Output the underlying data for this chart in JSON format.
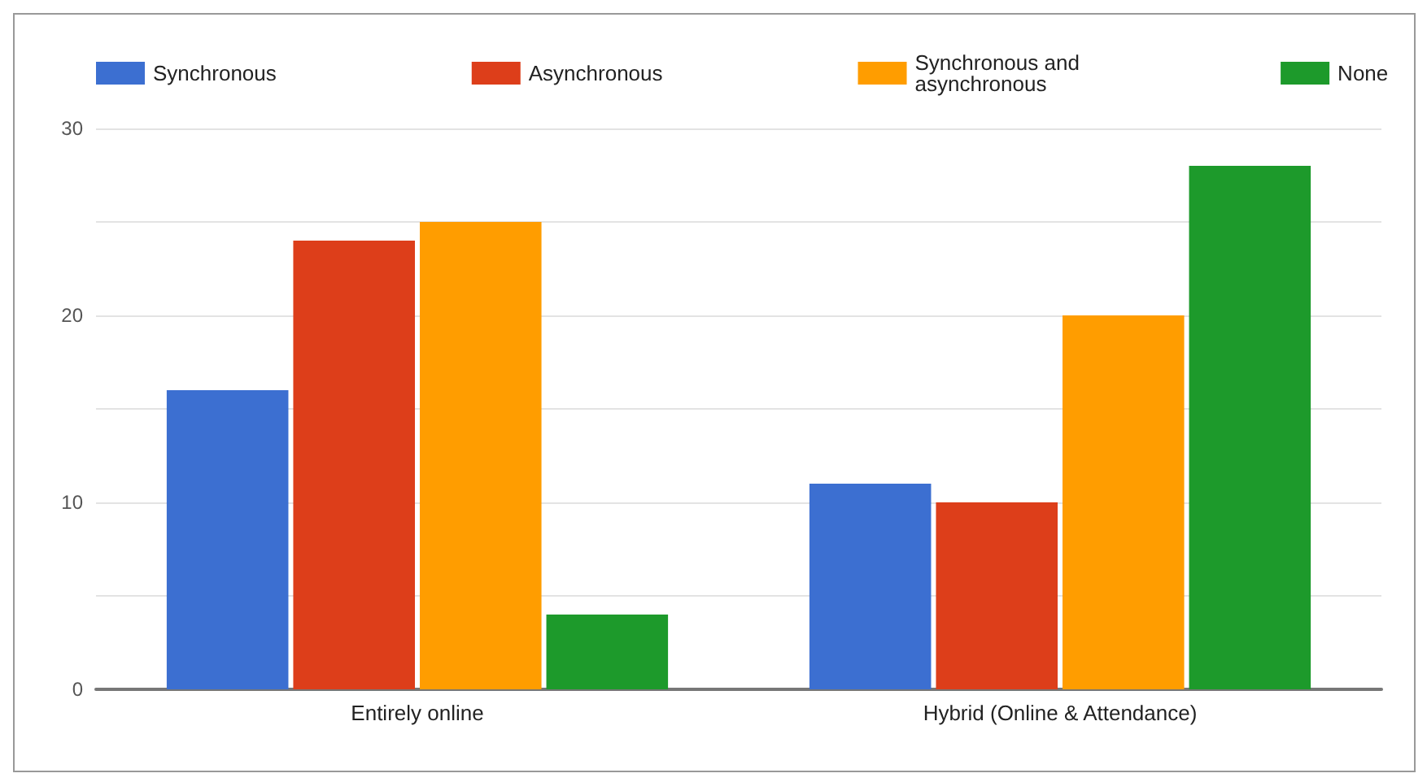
{
  "chart_data": {
    "type": "bar",
    "categories": [
      "Entirely online",
      "Hybrid (Online & Attendance)"
    ],
    "series": [
      {
        "name": "Synchronous",
        "color": "#3c6fd1",
        "values": [
          16,
          11
        ]
      },
      {
        "name": "Asynchronous",
        "color": "#dd3e1a",
        "values": [
          24,
          10
        ]
      },
      {
        "name": "Synchronous and asynchronous",
        "color": "#ff9d00",
        "values": [
          25,
          20
        ]
      },
      {
        "name": "None",
        "color": "#1d9a2b",
        "values": [
          4,
          28
        ]
      }
    ],
    "ylim": [
      0,
      30
    ],
    "yticks": [
      0,
      {
        "value": 5,
        "label": null
      },
      10,
      {
        "value": 15,
        "label": null
      },
      20,
      {
        "value": 25,
        "label": null
      },
      30
    ],
    "grid": true,
    "legend": "top"
  }
}
